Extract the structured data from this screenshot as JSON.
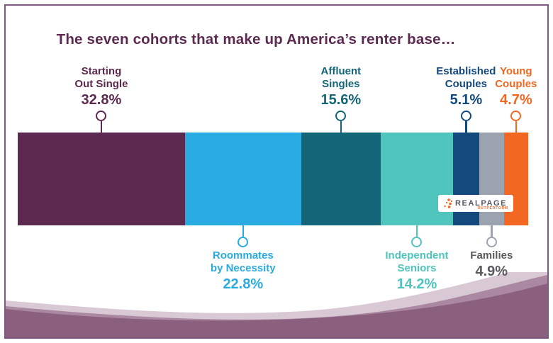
{
  "title": "The seven cohorts that make up America’s renter base…",
  "logo": {
    "brand": "REALPAGE",
    "tagline": "OUTPERFORM"
  },
  "theme": {
    "background": "#ffffff",
    "border": "#7e5a81",
    "title_color": "#5c2a50",
    "wave_light": "#d8c9d5",
    "wave_medium": "#ab88a1",
    "wave_dark": "#8b5f7e",
    "logo_text": "#53565f",
    "logo_accent": "#f26722"
  },
  "chart_data": {
    "type": "bar",
    "variant": "horizontal-stacked-100percent",
    "title": "The seven cohorts that make up America’s renter base…",
    "total": 100,
    "grid": false,
    "legend_position": "lollipop-callouts-above-and-below",
    "categories": [
      "Starting Out Single",
      "Roommates by Necessity",
      "Affluent Singles",
      "Independent Seniors",
      "Established Couples",
      "Families",
      "Young Couples"
    ],
    "values": [
      32.8,
      22.8,
      15.6,
      14.2,
      5.1,
      4.9,
      4.7
    ],
    "value_labels": [
      "32.8%",
      "22.8%",
      "15.6%",
      "14.2%",
      "5.1%",
      "4.9%",
      "4.7%"
    ],
    "cohorts": [
      {
        "name": "Starting Out Single",
        "lines": [
          "Starting",
          "Out Single"
        ],
        "value": 32.8,
        "label": "32.8%",
        "color": "#5c2a50",
        "text_color": "#5c2a50",
        "connector_color": "#5c2a50",
        "callout": "top"
      },
      {
        "name": "Roommates by Necessity",
        "lines": [
          "Roommates",
          "by Necessity"
        ],
        "value": 22.8,
        "label": "22.8%",
        "color": "#29abe2",
        "text_color": "#29abe2",
        "connector_color": "#29abe2",
        "callout": "bottom"
      },
      {
        "name": "Affluent Singles",
        "lines": [
          "Affluent",
          "Singles"
        ],
        "value": 15.6,
        "label": "15.6%",
        "color": "#156578",
        "text_color": "#156578",
        "connector_color": "#156578",
        "callout": "top"
      },
      {
        "name": "Independent Seniors",
        "lines": [
          "Independent",
          "Seniors"
        ],
        "value": 14.2,
        "label": "14.2%",
        "color": "#4fc5bd",
        "text_color": "#4fc5bd",
        "connector_color": "#4fc5bd",
        "callout": "bottom"
      },
      {
        "name": "Established Couples",
        "lines": [
          "Established",
          "Couples"
        ],
        "value": 5.1,
        "label": "5.1%",
        "color": "#14497e",
        "text_color": "#14497e",
        "connector_color": "#14497e",
        "callout": "top"
      },
      {
        "name": "Families",
        "lines": [
          "Families"
        ],
        "value": 4.9,
        "label": "4.9%",
        "color": "#9ba3b0",
        "text_color": "#595a5e",
        "connector_color": "#9ba3b0",
        "callout": "bottom"
      },
      {
        "name": "Young Couples",
        "lines": [
          "Young",
          "Couples"
        ],
        "value": 4.7,
        "label": "4.7%",
        "color": "#f26722",
        "text_color": "#f26722",
        "connector_color": "#f26722",
        "callout": "top"
      }
    ]
  }
}
